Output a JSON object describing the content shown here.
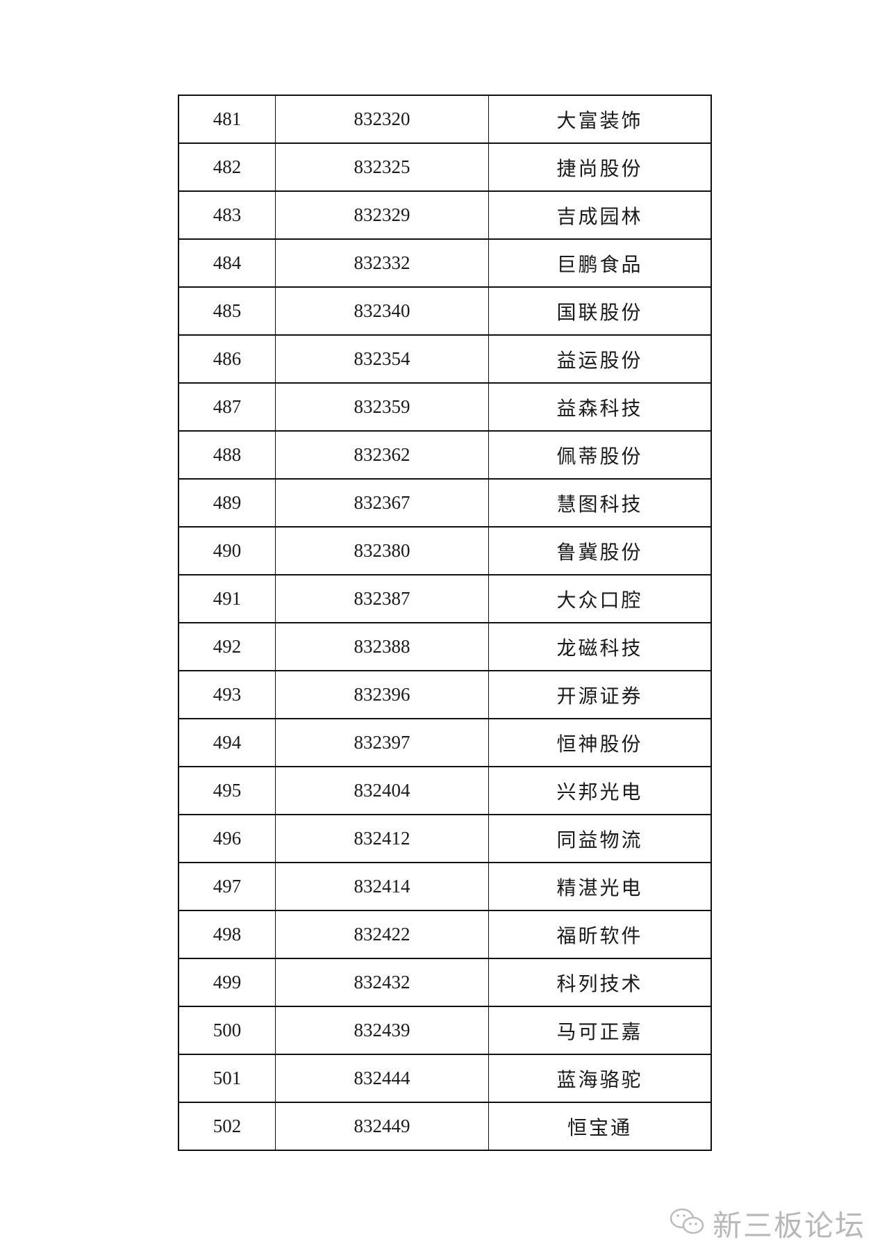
{
  "table": {
    "rows": [
      {
        "no": "481",
        "code": "832320",
        "name": "大富装饰"
      },
      {
        "no": "482",
        "code": "832325",
        "name": "捷尚股份"
      },
      {
        "no": "483",
        "code": "832329",
        "name": "吉成园林"
      },
      {
        "no": "484",
        "code": "832332",
        "name": "巨鹏食品"
      },
      {
        "no": "485",
        "code": "832340",
        "name": "国联股份"
      },
      {
        "no": "486",
        "code": "832354",
        "name": "益运股份"
      },
      {
        "no": "487",
        "code": "832359",
        "name": "益森科技"
      },
      {
        "no": "488",
        "code": "832362",
        "name": "佩蒂股份"
      },
      {
        "no": "489",
        "code": "832367",
        "name": "慧图科技"
      },
      {
        "no": "490",
        "code": "832380",
        "name": "鲁冀股份"
      },
      {
        "no": "491",
        "code": "832387",
        "name": "大众口腔"
      },
      {
        "no": "492",
        "code": "832388",
        "name": "龙磁科技"
      },
      {
        "no": "493",
        "code": "832396",
        "name": "开源证券"
      },
      {
        "no": "494",
        "code": "832397",
        "name": "恒神股份"
      },
      {
        "no": "495",
        "code": "832404",
        "name": "兴邦光电"
      },
      {
        "no": "496",
        "code": "832412",
        "name": "同益物流"
      },
      {
        "no": "497",
        "code": "832414",
        "name": "精湛光电"
      },
      {
        "no": "498",
        "code": "832422",
        "name": "福昕软件"
      },
      {
        "no": "499",
        "code": "832432",
        "name": "科列技术"
      },
      {
        "no": "500",
        "code": "832439",
        "name": "马可正嘉"
      },
      {
        "no": "501",
        "code": "832444",
        "name": "蓝海骆驼"
      },
      {
        "no": "502",
        "code": "832449",
        "name": "恒宝通"
      }
    ]
  },
  "watermark": {
    "text": "新三板论坛",
    "icon": "wechat-icon",
    "color": "#b8b8b8"
  }
}
